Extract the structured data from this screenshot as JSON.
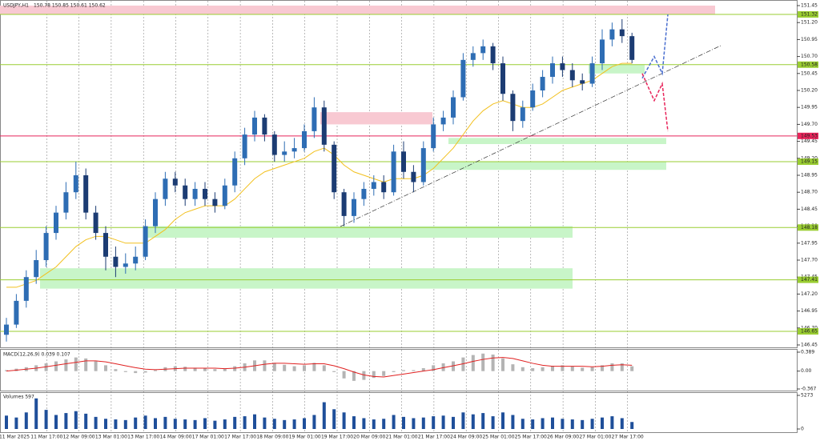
{
  "chart_data": {
    "type": "candlestick",
    "symbol": "USDJPY,H1",
    "quote": "150.78 150.85 150.61 150.62",
    "up_color": "#2e6db4",
    "down_color": "#1c3c73",
    "ma_color": "#f2c01e",
    "ylim": [
      146.45,
      151.45
    ],
    "yticks": [
      151.45,
      {
        "value": 151.2,
        "label": "151.20"
      },
      150.95,
      {
        "value": 150.7,
        "label": "150.70"
      },
      150.45,
      {
        "value": 150.2,
        "label": "150.20"
      },
      149.95,
      {
        "value": 149.7,
        "label": "149.70"
      },
      149.45,
      {
        "value": 149.2,
        "label": "149.20"
      },
      148.95,
      {
        "value": 148.7,
        "label": "148.70"
      },
      148.45,
      {
        "value": 148.2,
        "label": "148.20"
      },
      147.95,
      {
        "value": 147.7,
        "label": "147.70"
      },
      147.45,
      {
        "value": 147.2,
        "label": "147.20"
      },
      146.95,
      {
        "value": 146.7,
        "label": "146.70"
      },
      146.45
    ],
    "xtick_labels": [
      "11 Mar 2025",
      "11 Mar 17:00",
      "12 Mar 09:00",
      "13 Mar 01:00",
      "13 Mar 17:00",
      "14 Mar 09:00",
      "17 Mar 01:00",
      "17 Mar 17:00",
      "18 Mar 09:00",
      "19 Mar 01:00",
      "19 Mar 17:00",
      "20 Mar 09:00",
      "21 Mar 01:00",
      "21 Mar 17:00",
      "24 Mar 09:00",
      "25 Mar 01:00",
      "25 Mar 17:00",
      "26 Mar 09:00",
      "27 Mar 01:00",
      "27 Mar 17:00"
    ],
    "levels": [
      {
        "value": 151.32,
        "color": "#9acd32"
      },
      {
        "value": 150.58,
        "color": "#9acd32"
      },
      {
        "value": 149.53,
        "color": "#e8245a"
      },
      {
        "value": 149.15,
        "color": "#9acd32"
      },
      {
        "value": 148.18,
        "color": "#9acd32"
      },
      {
        "value": 147.41,
        "color": "#9acd32"
      },
      {
        "value": 146.65,
        "color": "#9acd32"
      }
    ],
    "zones": [
      {
        "low": 151.32,
        "high": 151.45,
        "color": "#f8c9d2"
      },
      {
        "low": 149.7,
        "high": 149.88,
        "color": "#f8c9d2"
      },
      {
        "low": 150.45,
        "high": 150.58,
        "color": "#c8f5c8"
      },
      {
        "low": 149.41,
        "high": 149.5,
        "color": "#c8f5c8"
      },
      {
        "low": 149.03,
        "high": 149.15,
        "color": "#c8f5c8"
      },
      {
        "low": 148.03,
        "high": 148.2,
        "color": "#c8f5c8"
      },
      {
        "low": 147.28,
        "high": 147.58,
        "color": "#c8f5c8"
      }
    ],
    "forecast_up": {
      "color": "#4a6fd0",
      "values": [
        150.38,
        150.7,
        150.45,
        151.32
      ]
    },
    "forecast_down": {
      "color": "#e8245a",
      "values": [
        150.45,
        150.05,
        150.3,
        149.6
      ]
    },
    "open": [
      146.6,
      146.75,
      147.1,
      147.45,
      147.7,
      148.1,
      148.4,
      148.7,
      148.95,
      148.4,
      148.1,
      147.75,
      147.6,
      147.65,
      147.75,
      148.2,
      148.6,
      148.9,
      148.8,
      148.6,
      148.75,
      148.6,
      148.5,
      148.8,
      149.2,
      149.55,
      149.8,
      149.55,
      149.25,
      149.3,
      149.35,
      149.6,
      149.95,
      149.4,
      148.7,
      148.35,
      148.6,
      148.75,
      148.85,
      148.7,
      149.3,
      149.0,
      148.85,
      149.35,
      149.7,
      149.8,
      150.1,
      150.65,
      150.75,
      150.85,
      150.6,
      150.15,
      149.75,
      149.95,
      150.2,
      150.4,
      150.6,
      150.5,
      150.35,
      150.3,
      150.6,
      150.95,
      151.1,
      151.0
    ],
    "high": [
      146.85,
      147.2,
      147.55,
      147.85,
      148.2,
      148.5,
      148.85,
      149.15,
      149.05,
      148.5,
      148.2,
      147.9,
      147.8,
      147.9,
      148.3,
      148.7,
      149.0,
      149.0,
      148.9,
      148.85,
      148.85,
      148.7,
      148.9,
      149.3,
      149.65,
      149.9,
      149.85,
      149.6,
      149.45,
      149.5,
      149.7,
      150.1,
      150.05,
      149.45,
      148.75,
      148.7,
      148.85,
      148.95,
      148.95,
      149.4,
      149.45,
      149.1,
      149.45,
      149.8,
      149.9,
      150.2,
      150.75,
      150.85,
      150.95,
      150.9,
      150.7,
      150.2,
      150.05,
      150.3,
      150.5,
      150.7,
      150.7,
      150.6,
      150.45,
      150.7,
      151.1,
      151.2,
      151.25,
      151.05
    ],
    "low": [
      146.5,
      146.7,
      147.0,
      147.35,
      147.6,
      148.0,
      148.3,
      148.6,
      148.3,
      148.0,
      147.55,
      147.45,
      147.5,
      147.55,
      147.7,
      148.1,
      148.5,
      148.7,
      148.5,
      148.5,
      148.5,
      148.4,
      148.45,
      148.7,
      149.1,
      149.45,
      149.45,
      149.15,
      149.15,
      149.2,
      149.3,
      149.5,
      149.3,
      148.6,
      148.2,
      148.25,
      148.5,
      148.65,
      148.6,
      148.65,
      148.9,
      148.7,
      148.8,
      149.3,
      149.6,
      149.7,
      150.05,
      150.55,
      150.65,
      150.5,
      150.05,
      149.6,
      149.65,
      149.9,
      150.1,
      150.3,
      150.4,
      150.25,
      150.2,
      150.25,
      150.5,
      150.85,
      150.9,
      150.6
    ],
    "close": [
      146.75,
      147.1,
      147.45,
      147.7,
      148.1,
      148.4,
      148.7,
      148.95,
      148.4,
      148.1,
      147.75,
      147.6,
      147.65,
      147.75,
      148.2,
      148.6,
      148.9,
      148.8,
      148.6,
      148.75,
      148.6,
      148.5,
      148.8,
      149.2,
      149.55,
      149.8,
      149.55,
      149.25,
      149.3,
      149.35,
      149.6,
      149.95,
      149.4,
      148.7,
      148.35,
      148.6,
      148.75,
      148.85,
      148.7,
      149.3,
      149.0,
      148.85,
      149.35,
      149.7,
      149.8,
      150.1,
      150.65,
      150.75,
      150.85,
      150.6,
      150.15,
      149.75,
      149.95,
      150.2,
      150.4,
      150.6,
      150.5,
      150.35,
      150.3,
      150.6,
      150.95,
      151.1,
      151.0,
      150.65
    ],
    "ma": [
      147.3,
      147.3,
      147.35,
      147.4,
      147.5,
      147.6,
      147.75,
      147.9,
      148.0,
      148.05,
      148.05,
      148.0,
      147.95,
      147.95,
      147.95,
      148.05,
      148.15,
      148.3,
      148.4,
      148.45,
      148.5,
      148.5,
      148.5,
      148.6,
      148.75,
      148.9,
      149.0,
      149.05,
      149.1,
      149.15,
      149.2,
      149.3,
      149.35,
      149.25,
      149.1,
      149.0,
      148.95,
      148.9,
      148.85,
      148.9,
      148.9,
      148.9,
      148.95,
      149.05,
      149.2,
      149.35,
      149.55,
      149.75,
      149.9,
      150.0,
      150.05,
      150.0,
      149.95,
      149.95,
      150.0,
      150.1,
      150.2,
      150.25,
      150.3,
      150.35,
      150.45,
      150.55,
      150.6,
      150.6
    ],
    "macd": {
      "label": "MACD(12,26,9) 0.039 0.107",
      "ylim": [
        -0.367,
        0.389
      ],
      "yticks": [
        0.389,
        {
          "value": 0,
          "label": "0.00"
        },
        -0.367
      ],
      "hist_color": "#b4b4b4",
      "signal_color": "#e02020",
      "hist": [
        0.02,
        0.05,
        0.08,
        0.12,
        0.16,
        0.2,
        0.24,
        0.28,
        0.26,
        0.2,
        0.12,
        0.04,
        -0.02,
        -0.04,
        -0.03,
        0.02,
        0.08,
        0.1,
        0.09,
        0.07,
        0.06,
        0.04,
        0.05,
        0.1,
        0.16,
        0.22,
        0.22,
        0.17,
        0.13,
        0.1,
        0.12,
        0.17,
        0.12,
        -0.02,
        -0.15,
        -0.2,
        -0.18,
        -0.14,
        -0.1,
        -0.02,
        0.02,
        0.02,
        0.06,
        0.12,
        0.16,
        0.2,
        0.28,
        0.33,
        0.36,
        0.34,
        0.26,
        0.14,
        0.08,
        0.06,
        0.08,
        0.11,
        0.12,
        0.1,
        0.07,
        0.08,
        0.12,
        0.16,
        0.16,
        0.1
      ],
      "signal": [
        0.0,
        0.02,
        0.04,
        0.06,
        0.09,
        0.12,
        0.15,
        0.18,
        0.21,
        0.21,
        0.19,
        0.15,
        0.11,
        0.07,
        0.04,
        0.03,
        0.04,
        0.05,
        0.06,
        0.06,
        0.06,
        0.06,
        0.05,
        0.06,
        0.08,
        0.11,
        0.14,
        0.16,
        0.16,
        0.15,
        0.14,
        0.15,
        0.15,
        0.11,
        0.05,
        -0.02,
        -0.08,
        -0.11,
        -0.12,
        -0.09,
        -0.06,
        -0.03,
        0.0,
        0.03,
        0.07,
        0.11,
        0.15,
        0.2,
        0.24,
        0.27,
        0.28,
        0.26,
        0.21,
        0.16,
        0.12,
        0.1,
        0.1,
        0.1,
        0.1,
        0.09,
        0.1,
        0.12,
        0.13,
        0.12
      ]
    },
    "volume": {
      "label": "Volumes 597",
      "ylim": [
        0,
        5273
      ],
      "yticks": [
        5273,
        0
      ],
      "color": "#1f4f9a",
      "values": [
        2100,
        1800,
        2600,
        4800,
        3000,
        2200,
        2500,
        2800,
        2400,
        1900,
        1600,
        1500,
        1400,
        1800,
        2100,
        1700,
        1900,
        1600,
        1500,
        1400,
        1700,
        1300,
        1500,
        1900,
        2000,
        2300,
        1800,
        1600,
        1400,
        1500,
        1700,
        2200,
        4200,
        3100,
        2600,
        2000,
        1700,
        1500,
        1600,
        2200,
        1900,
        1700,
        1800,
        2000,
        2100,
        1900,
        2600,
        2300,
        2500,
        2000,
        2600,
        2200,
        1600,
        1500,
        1700,
        1800,
        1600,
        1500,
        1400,
        1600,
        1800,
        2000,
        1700,
        1100
      ]
    }
  }
}
